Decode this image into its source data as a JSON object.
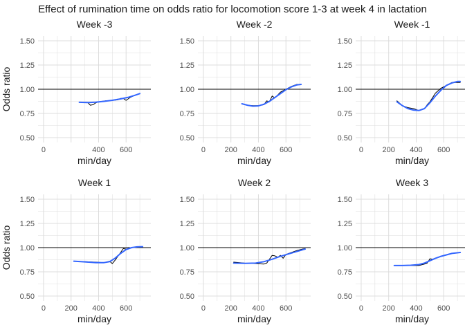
{
  "figure": {
    "title": "Effect of rumination time on odds ratio for locomotion score 1-3 at week 4 in lactation"
  },
  "colors": {
    "background": "#ffffff",
    "grid": "#dcdcdc",
    "axis_text": "#4d4d4d",
    "title_text": "#1a1a1a",
    "raw_line": "#000000",
    "smooth_line": "#3366ff",
    "reference_line": "#000000"
  },
  "chart_data": [
    {
      "type": "line",
      "title": "Week -3",
      "xlabel": "min/day",
      "ylabel": "Odds ratio",
      "xlim": [
        -40,
        780
      ],
      "ylim": [
        0.45,
        1.55
      ],
      "xticks": [
        0,
        200,
        400,
        600
      ],
      "xtick_labels": [
        "0",
        "",
        "400",
        "600"
      ],
      "yticks": [
        0.5,
        0.75,
        1.0,
        1.25,
        1.5
      ],
      "ytick_labels": [
        "0.50",
        "0.75",
        "1.00",
        "1.25",
        "1.50"
      ],
      "reference_y": 1.0,
      "grid": true,
      "series": [
        {
          "role": "observed",
          "x": [
            260,
            320,
            340,
            360,
            380,
            400,
            450,
            500,
            540,
            560,
            580,
            600,
            630,
            660,
            700
          ],
          "y": [
            0.865,
            0.865,
            0.835,
            0.84,
            0.86,
            0.87,
            0.88,
            0.885,
            0.89,
            0.905,
            0.905,
            0.885,
            0.915,
            0.935,
            0.955
          ]
        },
        {
          "role": "smoothed",
          "x": [
            260,
            320,
            380,
            440,
            500,
            560,
            620,
            660,
            700
          ],
          "y": [
            0.865,
            0.862,
            0.866,
            0.875,
            0.886,
            0.9,
            0.918,
            0.935,
            0.955
          ]
        }
      ]
    },
    {
      "type": "line",
      "title": "Week -2",
      "xlabel": "min/day",
      "ylabel": "",
      "xlim": [
        -40,
        780
      ],
      "ylim": [
        0.45,
        1.55
      ],
      "xticks": [
        0,
        200,
        400,
        600
      ],
      "xtick_labels": [
        "0",
        "200",
        "400",
        "600"
      ],
      "yticks": [
        0.5,
        0.75,
        1.0,
        1.25,
        1.5
      ],
      "ytick_labels": [
        "0.50",
        "0.75",
        "1.00",
        "1.25",
        "1.50"
      ],
      "reference_y": 1.0,
      "grid": true,
      "series": [
        {
          "role": "observed",
          "x": [
            280,
            320,
            360,
            400,
            440,
            460,
            480,
            500,
            520,
            560,
            600,
            640,
            680,
            710
          ],
          "y": [
            0.85,
            0.835,
            0.83,
            0.83,
            0.84,
            0.88,
            0.87,
            0.93,
            0.91,
            0.97,
            1.0,
            1.03,
            1.05,
            1.05
          ]
        },
        {
          "role": "smoothed",
          "x": [
            280,
            320,
            360,
            400,
            440,
            480,
            520,
            560,
            600,
            640,
            680,
            710
          ],
          "y": [
            0.85,
            0.835,
            0.825,
            0.828,
            0.845,
            0.875,
            0.915,
            0.955,
            0.995,
            1.025,
            1.045,
            1.05
          ]
        }
      ]
    },
    {
      "type": "line",
      "title": "Week -1",
      "xlabel": "min/day",
      "ylabel": "",
      "xlim": [
        -40,
        780
      ],
      "ylim": [
        0.45,
        1.55
      ],
      "xticks": [
        0,
        200,
        400,
        600
      ],
      "xtick_labels": [
        "0",
        "200",
        "400",
        "600"
      ],
      "yticks": [
        0.5,
        0.75,
        1.0,
        1.25,
        1.5
      ],
      "ytick_labels": [
        "0.50",
        "0.75",
        "1.00",
        "1.25",
        "1.50"
      ],
      "reference_y": 1.0,
      "grid": true,
      "series": [
        {
          "role": "observed",
          "x": [
            260,
            300,
            340,
            380,
            420,
            440,
            460,
            480,
            500,
            540,
            580,
            620,
            660,
            700,
            720
          ],
          "y": [
            0.88,
            0.83,
            0.81,
            0.8,
            0.78,
            0.79,
            0.8,
            0.84,
            0.87,
            0.96,
            1.01,
            1.04,
            1.07,
            1.07,
            1.07
          ]
        },
        {
          "role": "smoothed",
          "x": [
            260,
            300,
            340,
            380,
            420,
            460,
            500,
            540,
            580,
            620,
            660,
            700,
            720
          ],
          "y": [
            0.87,
            0.83,
            0.8,
            0.785,
            0.78,
            0.8,
            0.86,
            0.93,
            0.99,
            1.04,
            1.065,
            1.08,
            1.08
          ]
        }
      ]
    },
    {
      "type": "line",
      "title": "Week 1",
      "xlabel": "min/day",
      "ylabel": "Odds ratio",
      "xlim": [
        -40,
        780
      ],
      "ylim": [
        0.45,
        1.55
      ],
      "xticks": [
        0,
        200,
        400,
        600
      ],
      "xtick_labels": [
        "0",
        "200",
        "400",
        "600"
      ],
      "yticks": [
        0.5,
        0.75,
        1.0,
        1.25,
        1.5
      ],
      "ytick_labels": [
        "0.50",
        "0.75",
        "1.00",
        "1.25",
        "1.50"
      ],
      "reference_y": 1.0,
      "grid": true,
      "series": [
        {
          "role": "observed",
          "x": [
            220,
            300,
            380,
            440,
            480,
            500,
            520,
            560,
            580,
            600,
            640,
            680,
            720
          ],
          "y": [
            0.86,
            0.855,
            0.85,
            0.845,
            0.86,
            0.835,
            0.87,
            0.95,
            0.99,
            0.985,
            1.0,
            1.01,
            1.01
          ]
        },
        {
          "role": "smoothed",
          "x": [
            220,
            300,
            380,
            440,
            480,
            520,
            560,
            600,
            640,
            680,
            720
          ],
          "y": [
            0.86,
            0.853,
            0.845,
            0.845,
            0.855,
            0.89,
            0.94,
            0.98,
            1.0,
            1.008,
            1.01
          ]
        }
      ]
    },
    {
      "type": "line",
      "title": "Week 2",
      "xlabel": "min/day",
      "ylabel": "",
      "xlim": [
        -40,
        780
      ],
      "ylim": [
        0.45,
        1.55
      ],
      "xticks": [
        0,
        200,
        400,
        600
      ],
      "xtick_labels": [
        "0",
        "200",
        "400",
        "600"
      ],
      "yticks": [
        0.5,
        0.75,
        1.0,
        1.25,
        1.5
      ],
      "ytick_labels": [
        "0.50",
        "0.75",
        "1.00",
        "1.25",
        "1.50"
      ],
      "reference_y": 1.0,
      "grid": true,
      "series": [
        {
          "role": "observed",
          "x": [
            220,
            300,
            380,
            440,
            460,
            480,
            500,
            520,
            540,
            560,
            580,
            600,
            640,
            680,
            720,
            740
          ],
          "y": [
            0.85,
            0.84,
            0.835,
            0.83,
            0.84,
            0.88,
            0.92,
            0.915,
            0.9,
            0.92,
            0.89,
            0.93,
            0.95,
            0.97,
            0.985,
            0.99
          ]
        },
        {
          "role": "smoothed",
          "x": [
            220,
            300,
            380,
            440,
            500,
            560,
            620,
            680,
            740
          ],
          "y": [
            0.84,
            0.838,
            0.84,
            0.855,
            0.88,
            0.91,
            0.935,
            0.96,
            0.985
          ]
        }
      ]
    },
    {
      "type": "line",
      "title": "Week 3",
      "xlabel": "min/day",
      "ylabel": "",
      "xlim": [
        -40,
        780
      ],
      "ylim": [
        0.45,
        1.55
      ],
      "xticks": [
        0,
        200,
        400,
        600
      ],
      "xtick_labels": [
        "0",
        "200",
        "400",
        "600"
      ],
      "yticks": [
        0.5,
        0.75,
        1.0,
        1.25,
        1.5
      ],
      "ytick_labels": [
        "0.50",
        "0.75",
        "1.00",
        "1.25",
        "1.50"
      ],
      "reference_y": 1.0,
      "grid": true,
      "series": [
        {
          "role": "observed",
          "x": [
            240,
            300,
            360,
            420,
            460,
            480,
            500,
            520,
            560,
            600,
            640,
            680,
            720
          ],
          "y": [
            0.815,
            0.815,
            0.815,
            0.815,
            0.83,
            0.84,
            0.885,
            0.88,
            0.9,
            0.92,
            0.935,
            0.945,
            0.95
          ]
        },
        {
          "role": "smoothed",
          "x": [
            240,
            300,
            360,
            420,
            460,
            500,
            540,
            580,
            620,
            660,
            720
          ],
          "y": [
            0.815,
            0.815,
            0.818,
            0.825,
            0.84,
            0.865,
            0.89,
            0.91,
            0.925,
            0.94,
            0.95
          ]
        }
      ]
    }
  ]
}
